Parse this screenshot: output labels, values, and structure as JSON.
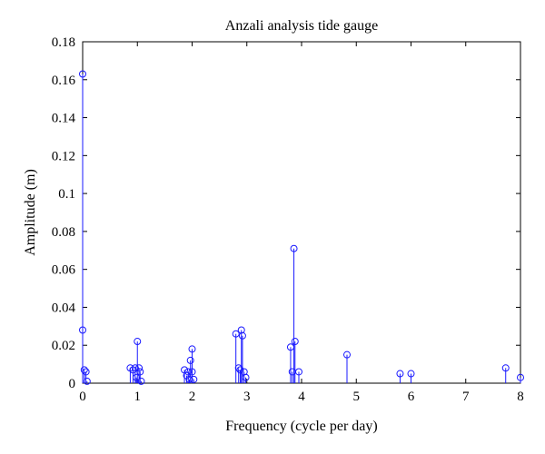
{
  "chart_data": {
    "type": "stem",
    "title": "Anzali analysis tide gauge",
    "xlabel": "Frequency (cycle per day)",
    "ylabel": "Amplitude (m)",
    "xlim": [
      0,
      8
    ],
    "ylim": [
      0,
      0.18
    ],
    "xticks": [
      0,
      1,
      2,
      3,
      4,
      5,
      6,
      7,
      8
    ],
    "xtick_labels": [
      "0",
      "1",
      "2",
      "3",
      "4",
      "5",
      "6",
      "7",
      "8"
    ],
    "yticks": [
      0,
      0.02,
      0.04,
      0.06,
      0.08,
      0.1,
      0.12,
      0.14,
      0.16,
      0.18
    ],
    "ytick_labels": [
      "0",
      "0.02",
      "0.04",
      "0.06",
      "0.08",
      "0.1",
      "0.12",
      "0.14",
      "0.16",
      "0.18"
    ],
    "grid": false,
    "color": "#1a1aff",
    "points": [
      {
        "x": 0.0,
        "y": 0.163
      },
      {
        "x": 0.0,
        "y": 0.028
      },
      {
        "x": 0.03,
        "y": 0.007
      },
      {
        "x": 0.06,
        "y": 0.006
      },
      {
        "x": 0.08,
        "y": 0.001
      },
      {
        "x": 0.87,
        "y": 0.008
      },
      {
        "x": 0.92,
        "y": 0.007
      },
      {
        "x": 0.96,
        "y": 0.008
      },
      {
        "x": 1.0,
        "y": 0.022
      },
      {
        "x": 1.03,
        "y": 0.008
      },
      {
        "x": 1.05,
        "y": 0.006
      },
      {
        "x": 0.98,
        "y": 0.003
      },
      {
        "x": 1.07,
        "y": 0.001
      },
      {
        "x": 1.86,
        "y": 0.007
      },
      {
        "x": 1.9,
        "y": 0.004
      },
      {
        "x": 1.93,
        "y": 0.006
      },
      {
        "x": 1.95,
        "y": 0.002
      },
      {
        "x": 1.97,
        "y": 0.012
      },
      {
        "x": 2.0,
        "y": 0.018
      },
      {
        "x": 2.0,
        "y": 0.006
      },
      {
        "x": 2.03,
        "y": 0.002
      },
      {
        "x": 2.8,
        "y": 0.026
      },
      {
        "x": 2.85,
        "y": 0.008
      },
      {
        "x": 2.88,
        "y": 0.007
      },
      {
        "x": 2.9,
        "y": 0.028
      },
      {
        "x": 2.92,
        "y": 0.025
      },
      {
        "x": 2.95,
        "y": 0.006
      },
      {
        "x": 2.98,
        "y": 0.003
      },
      {
        "x": 3.8,
        "y": 0.019
      },
      {
        "x": 3.83,
        "y": 0.006
      },
      {
        "x": 3.86,
        "y": 0.071
      },
      {
        "x": 3.88,
        "y": 0.022
      },
      {
        "x": 3.95,
        "y": 0.006
      },
      {
        "x": 4.83,
        "y": 0.015
      },
      {
        "x": 5.8,
        "y": 0.005
      },
      {
        "x": 6.0,
        "y": 0.005
      },
      {
        "x": 7.73,
        "y": 0.008
      },
      {
        "x": 8.0,
        "y": 0.003
      }
    ]
  }
}
